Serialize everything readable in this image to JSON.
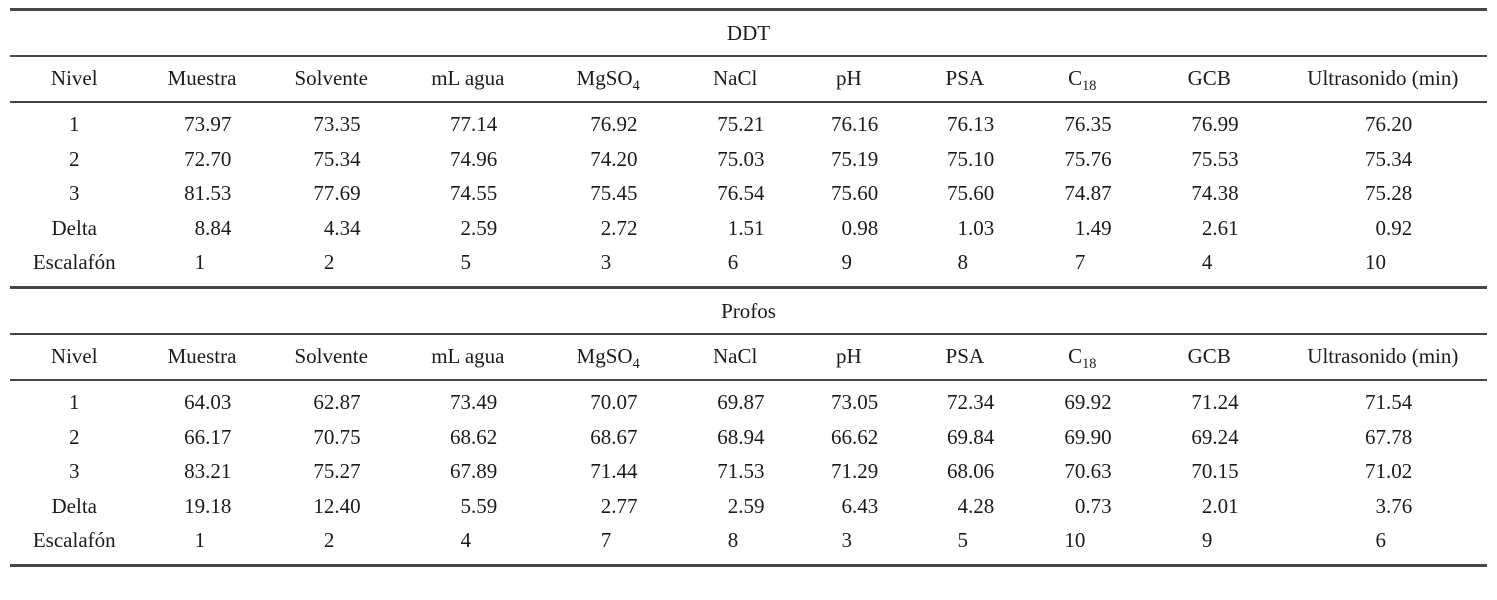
{
  "document": {
    "background": "#ffffff",
    "text_color": "#1b1b1b",
    "rule_color": "#474747"
  },
  "tables": [
    {
      "title": "DDT",
      "columns": [
        {
          "text": "Nivel",
          "sub": ""
        },
        {
          "text": "Muestra",
          "sub": ""
        },
        {
          "text": "Solvente",
          "sub": ""
        },
        {
          "text": "mL agua",
          "sub": ""
        },
        {
          "text": "MgSO",
          "sub": "4"
        },
        {
          "text": "NaCl",
          "sub": ""
        },
        {
          "text": "pH",
          "sub": ""
        },
        {
          "text": "PSA",
          "sub": ""
        },
        {
          "text": "C",
          "sub": "18"
        },
        {
          "text": "GCB",
          "sub": ""
        },
        {
          "text": "Ultrasonido (min)",
          "sub": ""
        }
      ],
      "rows": [
        {
          "label": "1",
          "values": [
            "73.97",
            "73.35",
            "77.14",
            "76.92",
            "75.21",
            "76.16",
            "76.13",
            "76.35",
            "76.99",
            "76.20"
          ]
        },
        {
          "label": "2",
          "values": [
            "72.70",
            "75.34",
            "74.96",
            "74.20",
            "75.03",
            "75.19",
            "75.10",
            "75.76",
            "75.53",
            "75.34"
          ]
        },
        {
          "label": "3",
          "values": [
            "81.53",
            "77.69",
            "74.55",
            "75.45",
            "76.54",
            "75.60",
            "75.60",
            "74.87",
            "74.38",
            "75.28"
          ]
        },
        {
          "label": "Delta",
          "values": [
            "8.84",
            "4.34",
            "2.59",
            "2.72",
            "1.51",
            "0.98",
            "1.03",
            "1.49",
            "2.61",
            "0.92"
          ]
        },
        {
          "label": "Escalafón",
          "values": [
            "1",
            "2",
            "5",
            "3",
            "6",
            "9",
            "8",
            "7",
            "4",
            "10"
          ]
        }
      ]
    },
    {
      "title": "Profos",
      "columns": [
        {
          "text": "Nivel",
          "sub": ""
        },
        {
          "text": "Muestra",
          "sub": ""
        },
        {
          "text": "Solvente",
          "sub": ""
        },
        {
          "text": "mL agua",
          "sub": ""
        },
        {
          "text": "MgSO",
          "sub": "4"
        },
        {
          "text": "NaCl",
          "sub": ""
        },
        {
          "text": "pH",
          "sub": ""
        },
        {
          "text": "PSA",
          "sub": ""
        },
        {
          "text": "C",
          "sub": "18"
        },
        {
          "text": "GCB",
          "sub": ""
        },
        {
          "text": "Ultrasonido (min)",
          "sub": ""
        }
      ],
      "rows": [
        {
          "label": "1",
          "values": [
            "64.03",
            "62.87",
            "73.49",
            "70.07",
            "69.87",
            "73.05",
            "72.34",
            "69.92",
            "71.24",
            "71.54"
          ]
        },
        {
          "label": "2",
          "values": [
            "66.17",
            "70.75",
            "68.62",
            "68.67",
            "68.94",
            "66.62",
            "69.84",
            "69.90",
            "69.24",
            "67.78"
          ]
        },
        {
          "label": "3",
          "values": [
            "83.21",
            "75.27",
            "67.89",
            "71.44",
            "71.53",
            "71.29",
            "68.06",
            "70.63",
            "70.15",
            "71.02"
          ]
        },
        {
          "label": "Delta",
          "values": [
            "19.18",
            "12.40",
            "5.59",
            "2.77",
            "2.59",
            "6.43",
            "4.28",
            "0.73",
            "2.01",
            "3.76"
          ]
        },
        {
          "label": "Escalafón",
          "values": [
            "1",
            "2",
            "4",
            "7",
            "8",
            "3",
            "5",
            "10",
            "9",
            "6"
          ]
        }
      ]
    }
  ]
}
